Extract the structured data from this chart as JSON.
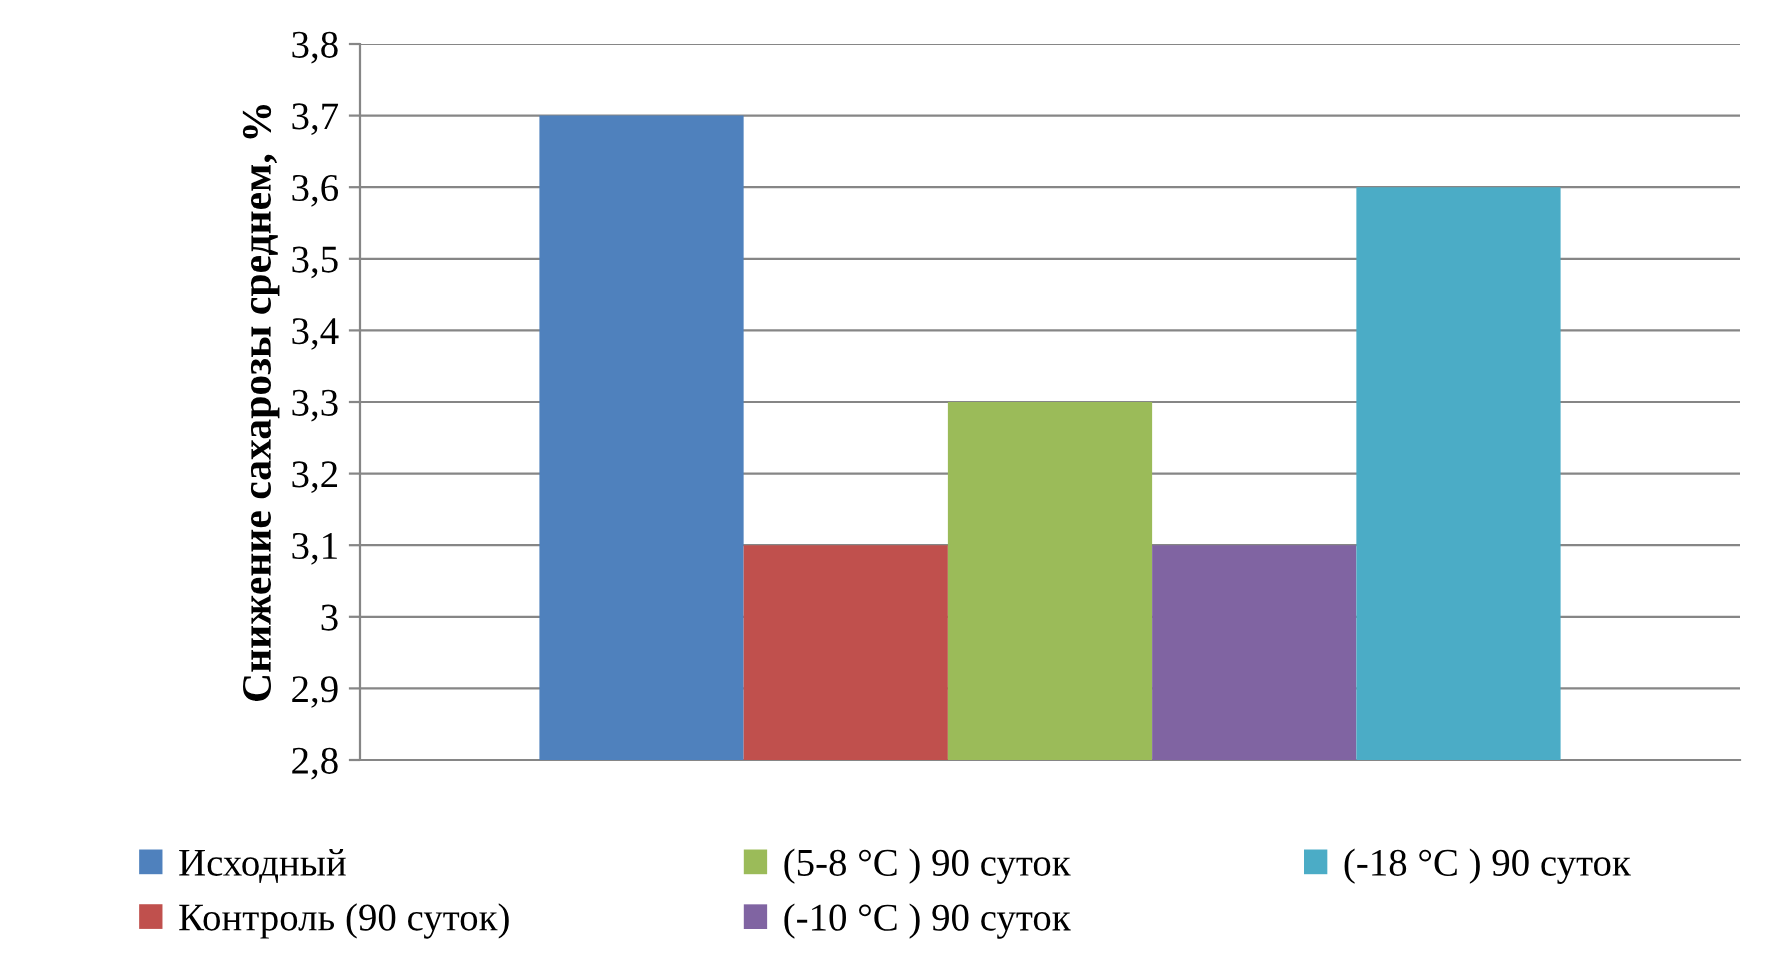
{
  "chart_data": {
    "type": "bar",
    "ylabel": "Снижение сахарозы среднем, %",
    "categories": [
      null
    ],
    "series": [
      {
        "name": "Исходный",
        "color": "#4f81bd",
        "values": [
          3.7
        ]
      },
      {
        "name": "Контроль (90 суток)",
        "color": "#c0504d",
        "values": [
          3.1
        ]
      },
      {
        "name": "(5-8 °C ) 90 суток",
        "color": "#9bbb59",
        "values": [
          3.3
        ]
      },
      {
        "name": "(-10 °C ) 90 суток",
        "color": "#8064a2",
        "values": [
          3.1
        ]
      },
      {
        "name": "(-18 °C ) 90 суток",
        "color": "#4bacc6",
        "values": [
          3.6
        ]
      }
    ],
    "ylim": [
      2.8,
      3.8
    ],
    "yticks": [
      {
        "value": 2.8,
        "label": "2,8"
      },
      {
        "value": 2.9,
        "label": "2,9"
      },
      {
        "value": 3,
        "label": "3"
      },
      {
        "value": 3.1,
        "label": "3,1"
      },
      {
        "value": 3.2,
        "label": "3,2"
      },
      {
        "value": 3.3,
        "label": "3,3"
      },
      {
        "value": 3.4,
        "label": "3,4"
      },
      {
        "value": 3.5,
        "label": "3,5"
      },
      {
        "value": 3.6,
        "label": "3,6"
      },
      {
        "value": 3.7,
        "label": "3,7"
      },
      {
        "value": 3.8,
        "label": "3,8"
      }
    ],
    "grid": "y",
    "legend": "bottom"
  }
}
